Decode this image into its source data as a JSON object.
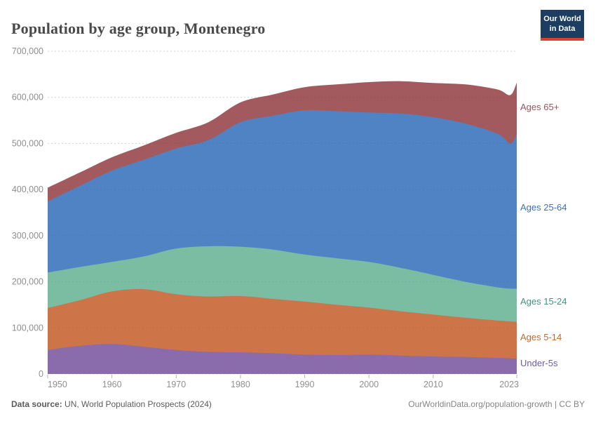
{
  "header": {
    "title": "Population by age group, Montenegro",
    "logo_line1": "Our World",
    "logo_line2": "in Data"
  },
  "chart_data": {
    "type": "area",
    "stacked": true,
    "title": "Population by age group, Montenegro",
    "entity": "Montenegro",
    "xlabel": "",
    "ylabel": "",
    "x": [
      1950,
      1955,
      1960,
      1965,
      1970,
      1975,
      1980,
      1985,
      1990,
      1995,
      2000,
      2005,
      2010,
      2015,
      2020,
      2022,
      2023
    ],
    "series": [
      {
        "name": "Under-5s",
        "color": "#8a6bab",
        "label_color": "#6d5f9c",
        "values": [
          52000,
          61000,
          65000,
          59000,
          52000,
          48000,
          47000,
          45000,
          42000,
          41000,
          42000,
          40000,
          38000,
          37000,
          35000,
          34000,
          33000
        ]
      },
      {
        "name": "Ages 5-14",
        "color": "#ce7449",
        "label_color": "#bd6c33",
        "values": [
          91000,
          99000,
          114000,
          125000,
          121000,
          120000,
          122000,
          118000,
          115000,
          109000,
          102000,
          96000,
          91000,
          85000,
          81000,
          80000,
          80000
        ]
      },
      {
        "name": "Ages 15-24",
        "color": "#7abda2",
        "label_color": "#42917e",
        "values": [
          77000,
          72000,
          64000,
          71000,
          99000,
          109000,
          107000,
          107000,
          102000,
          101000,
          99000,
          94000,
          86000,
          78000,
          72000,
          71000,
          72000
        ]
      },
      {
        "name": "Ages 25-64",
        "color": "#5083c4",
        "label_color": "#3d72b4",
        "values": [
          154000,
          176000,
          198000,
          210000,
          217000,
          230000,
          270000,
          290000,
          313000,
          319000,
          324000,
          335000,
          342000,
          343000,
          333000,
          315000,
          335000
        ]
      },
      {
        "name": "Ages 65+",
        "color": "#a35a5e",
        "label_color": "#995360",
        "values": [
          30000,
          29000,
          29000,
          31000,
          34000,
          39000,
          43000,
          46000,
          50000,
          58000,
          66000,
          70000,
          74000,
          85000,
          96000,
          105000,
          112000
        ]
      }
    ],
    "ylim": [
      0,
      700000
    ],
    "yticks": [
      0,
      100000,
      200000,
      300000,
      400000,
      500000,
      600000,
      700000
    ],
    "ytick_labels": [
      "0",
      "100,000",
      "200,000",
      "300,000",
      "400,000",
      "500,000",
      "600,000",
      "700,000"
    ],
    "xticks": [
      1950,
      1960,
      1970,
      1980,
      1990,
      2000,
      2010,
      2023
    ],
    "xtick_labels": [
      "1950",
      "1960",
      "1970",
      "1980",
      "1990",
      "2000",
      "2010",
      "2023"
    ],
    "grid": "horizontal-dashed",
    "legend_position": "right-of-plot"
  },
  "footer": {
    "data_source_label": "Data source:",
    "data_source_text": "UN, World Population Prospects (2024)",
    "link_text": "OurWorldinData.org/population-growth",
    "divider": "|",
    "license_text": "CC BY"
  }
}
